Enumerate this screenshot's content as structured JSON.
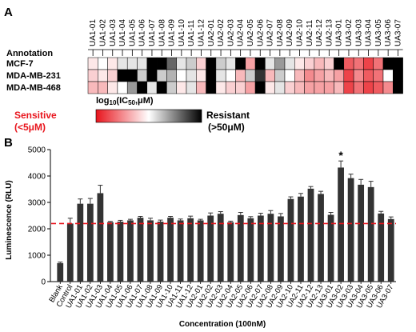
{
  "panel_a": {
    "letter": "A",
    "annotation_label": "Annotation",
    "compounds": [
      "UA1-01",
      "UA1-02",
      "UA1-03",
      "UA1-04",
      "UA1-05",
      "UA1-06",
      "UA1-07",
      "UA1-08",
      "UA1-09",
      "UA1-10",
      "UA1-11",
      "UA1-12",
      "UA2-01",
      "UA2-02",
      "UA2-03",
      "UA2-04",
      "UA2-05",
      "UA2-06",
      "UA2-07",
      "UA2-08",
      "UA2-09",
      "UA2-10",
      "UA2-11",
      "UA2-12",
      "UA2-13",
      "UA3-01",
      "UA3-02",
      "UA3-03",
      "UA3-04",
      "UA3-05",
      "UA3-06",
      "UA3-07"
    ],
    "cell_lines": [
      "MCF-7",
      "MDA-MB-231",
      "MDA-MB-468"
    ],
    "legend": {
      "scale_label": "log10(IC50,μM)",
      "sensitive_label": "Sensitive",
      "sensitive_range": "(<5μM)",
      "resistant_label": "Resistant",
      "resistant_range": "(>50μM)",
      "sensitive_color": "#e8141c",
      "resistant_color": "#000000",
      "mid_color": "#ffffff",
      "sensitive_text_color": "#e8141c"
    }
  },
  "panel_b": {
    "letter": "B",
    "significance_marker": "*",
    "bar_color": "#333333",
    "reference_line_color": "#e8141c"
  },
  "chart_data": [
    {
      "type": "heatmap",
      "title": "",
      "x_categories": [
        "UA1-01",
        "UA1-02",
        "UA1-03",
        "UA1-04",
        "UA1-05",
        "UA1-06",
        "UA1-07",
        "UA1-08",
        "UA1-09",
        "UA1-10",
        "UA1-11",
        "UA1-12",
        "UA2-01",
        "UA2-02",
        "UA2-03",
        "UA2-04",
        "UA2-05",
        "UA2-06",
        "UA2-07",
        "UA2-08",
        "UA2-09",
        "UA2-10",
        "UA2-11",
        "UA2-12",
        "UA2-13",
        "UA3-01",
        "UA3-02",
        "UA3-03",
        "UA3-04",
        "UA3-05",
        "UA3-06",
        "UA3-07"
      ],
      "y_categories": [
        "MCF-7",
        "MDA-MB-231",
        "MDA-MB-468"
      ],
      "color_scale": {
        "label": "log10(IC50,μM)",
        "min_label": "Sensitive (<5μM)",
        "max_label": "Resistant (>50μM)"
      },
      "values": [
        [
          0.45,
          0.5,
          0.45,
          0.55,
          0.55,
          0.55,
          1.0,
          1.0,
          0.8,
          0.55,
          0.6,
          0.4,
          1.0,
          0.6,
          0.55,
          1.0,
          0.3,
          1.0,
          0.55,
          0.7,
          0.55,
          0.45,
          0.4,
          0.35,
          0.4,
          1.0,
          0.15,
          0.2,
          0.1,
          0.2,
          1.0,
          1.0
        ],
        [
          0.4,
          0.45,
          0.4,
          1.0,
          1.0,
          0.6,
          1.0,
          0.6,
          0.65,
          0.5,
          0.55,
          0.45,
          1.0,
          0.55,
          0.5,
          0.35,
          0.6,
          0.9,
          0.35,
          0.6,
          0.5,
          0.35,
          0.25,
          0.3,
          0.35,
          0.3,
          0.1,
          0.25,
          0.15,
          0.2,
          0.5,
          1.0
        ],
        [
          0.35,
          0.35,
          0.45,
          0.5,
          0.7,
          1.0,
          0.55,
          1.0,
          0.6,
          0.45,
          0.55,
          0.35,
          1.0,
          0.45,
          0.4,
          0.4,
          0.3,
          1.0,
          0.45,
          0.55,
          0.4,
          0.35,
          0.3,
          0.3,
          0.3,
          0.35,
          0.1,
          0.2,
          0.1,
          0.15,
          0.25,
          1.0
        ]
      ]
    },
    {
      "type": "bar",
      "title": "",
      "xlabel": "Concentration (100nM)",
      "ylabel": "Luminescence (RLU)",
      "ylim": [
        0,
        5000
      ],
      "yticks": [
        0,
        1000,
        2000,
        3000,
        4000,
        5000
      ],
      "grid": false,
      "categories": [
        "Blank",
        "Control",
        "UA1-01",
        "UA1-02",
        "UA1-03",
        "UA1-04",
        "UA1-05",
        "UA1-06",
        "UA1-07",
        "UA1-08",
        "UA1-09",
        "UA1-10",
        "UA1-11",
        "UA1-12",
        "UA2-01",
        "UA2-02",
        "UA2-03",
        "UA2-04",
        "UA2-05",
        "UA2-06",
        "UA2-07",
        "UA2-08",
        "UA2-09",
        "UA2-10",
        "UA2-11",
        "UA2-12",
        "UA2-13",
        "UA3-01",
        "UA3-02",
        "UA3-03",
        "UA3-04",
        "UA3-05",
        "UA3-06",
        "UA3-07"
      ],
      "values": [
        700,
        2200,
        2950,
        2950,
        3350,
        2250,
        2270,
        2320,
        2420,
        2320,
        2270,
        2420,
        2320,
        2400,
        2320,
        2500,
        2570,
        2250,
        2520,
        2400,
        2500,
        2570,
        2470,
        3130,
        3220,
        3520,
        3320,
        2530,
        4320,
        3920,
        3670,
        3580,
        2580,
        2370
      ],
      "errors": [
        40,
        200,
        180,
        200,
        300,
        30,
        50,
        40,
        50,
        80,
        60,
        50,
        50,
        80,
        40,
        100,
        80,
        40,
        100,
        60,
        90,
        120,
        110,
        80,
        120,
        80,
        100,
        90,
        250,
        150,
        200,
        220,
        80,
        80
      ],
      "reference_line": {
        "value": 2200,
        "style": "dashed"
      },
      "annotations": [
        {
          "category": "UA3-02",
          "text": "*"
        }
      ]
    }
  ]
}
